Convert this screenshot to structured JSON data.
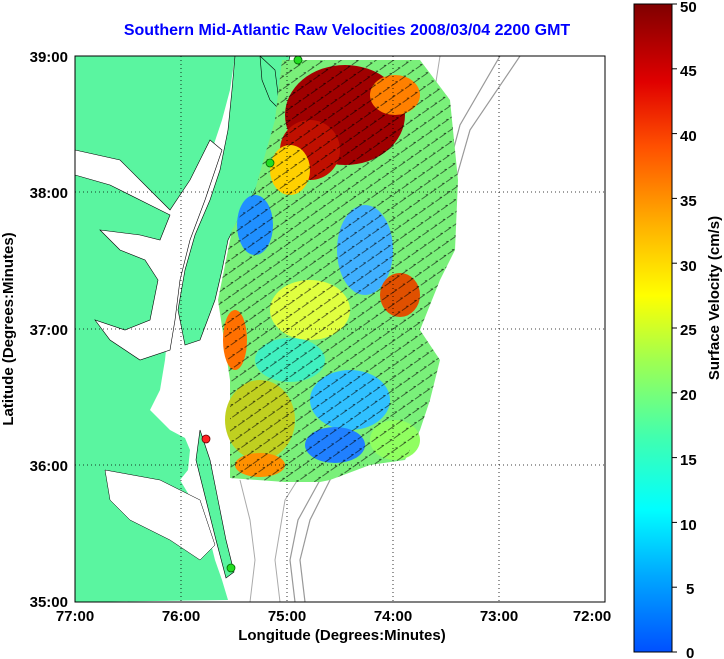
{
  "title": "Southern Mid-Atlantic Raw Velocities 2008/03/04 2200 GMT",
  "x_axis": {
    "label": "Longitude (Degrees:Minutes)",
    "ticks": [
      "77:00",
      "76:00",
      "75:00",
      "74:00",
      "73:00",
      "72:00"
    ]
  },
  "y_axis": {
    "label": "Latitude (Degrees:Minutes)",
    "ticks": [
      "39:00",
      "38:00",
      "37:00",
      "36:00",
      "35:00"
    ]
  },
  "colorbar": {
    "label": "Surface Velocity (cm/s)",
    "ticks": [
      "50",
      "45",
      "40",
      "35",
      "30",
      "25",
      "20",
      "15",
      "10",
      "5",
      "0"
    ],
    "min": 0,
    "max": 50
  },
  "colors": {
    "land": "#5af5a0",
    "water": "#ffffff",
    "title": "#0000ff",
    "station_active": "#22dd22",
    "station_alert": "#ff2222"
  },
  "map": {
    "lon_range": [
      77,
      72
    ],
    "lat_range": [
      35,
      39
    ],
    "grid": true
  }
}
